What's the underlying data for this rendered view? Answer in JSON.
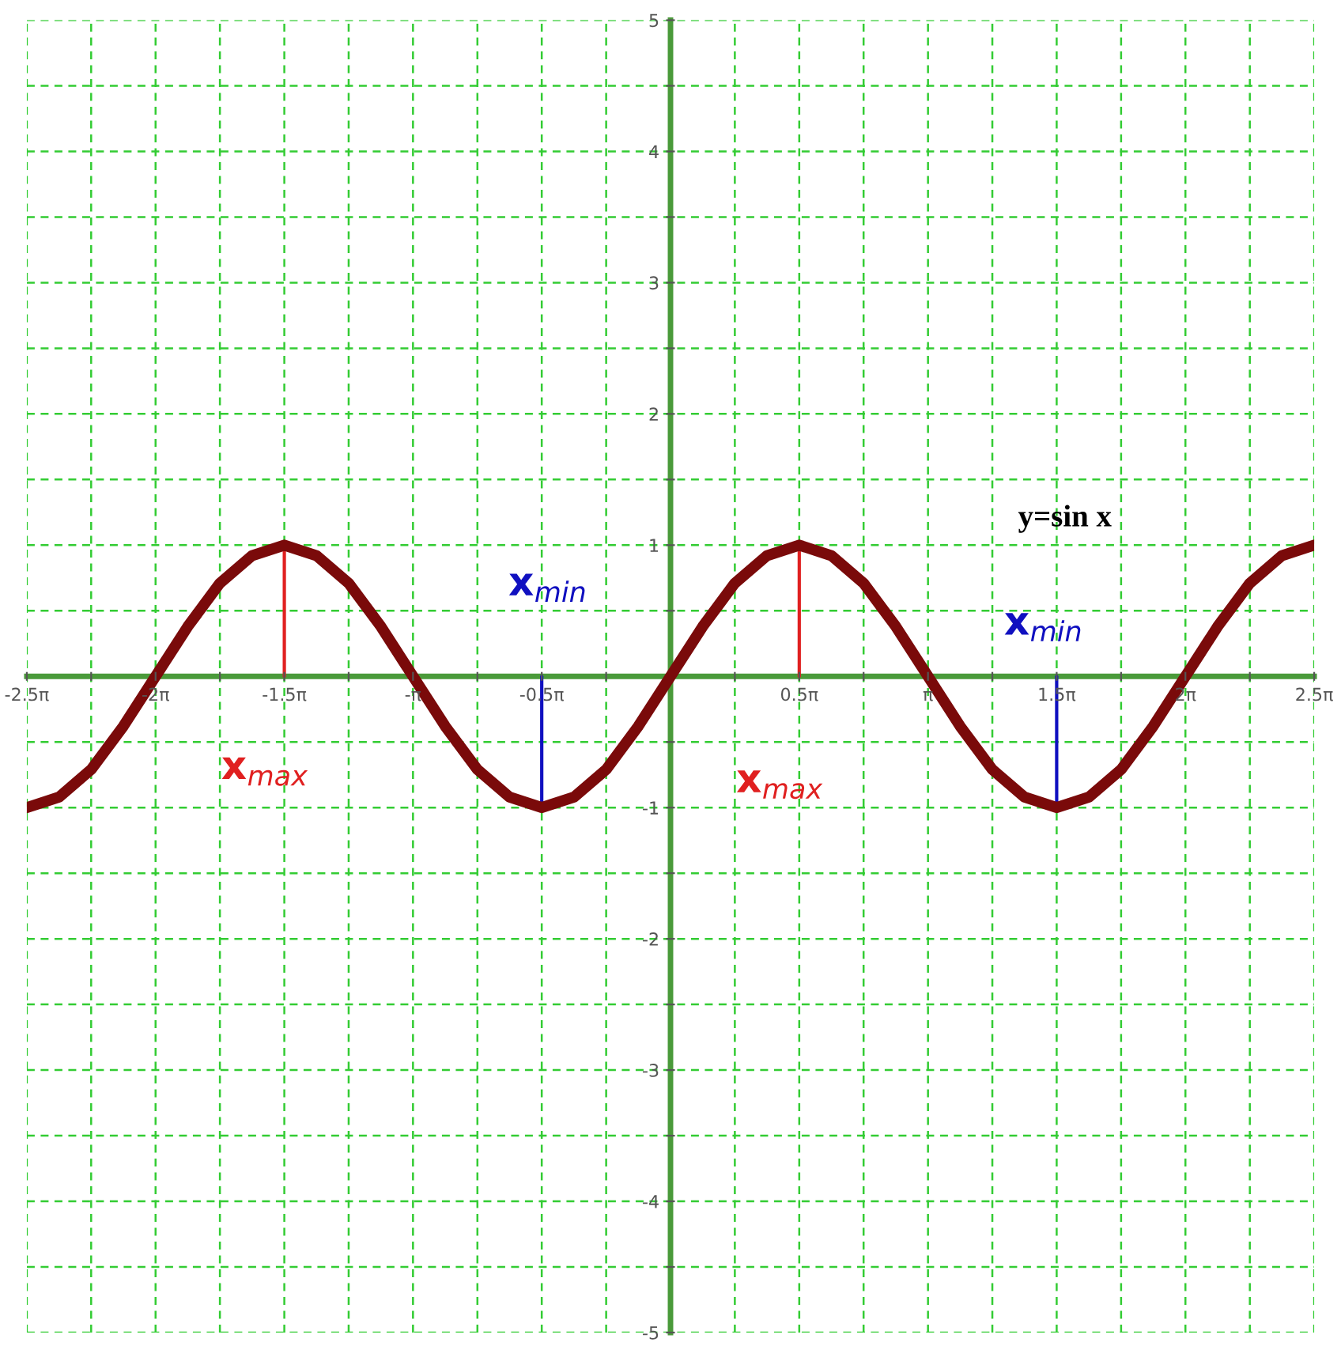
{
  "chart_data": {
    "type": "line",
    "x": [
      -7.854,
      -7.461,
      -7.069,
      -6.676,
      -6.283,
      -5.89,
      -5.498,
      -5.105,
      -4.712,
      -4.32,
      -3.927,
      -3.534,
      -3.142,
      -2.749,
      -2.356,
      -1.963,
      -1.571,
      -1.178,
      -0.785,
      -0.393,
      0.0,
      0.393,
      0.785,
      1.178,
      1.571,
      1.963,
      2.356,
      2.749,
      3.142,
      3.534,
      3.927,
      4.32,
      4.712,
      5.105,
      5.498,
      5.89,
      6.283,
      6.676,
      7.069,
      7.461,
      7.854
    ],
    "series": [
      {
        "color": "#7a0a0a",
        "values": [
          -1,
          -0.92,
          -0.71,
          -0.38,
          0,
          0.38,
          0.71,
          0.92,
          1,
          0.92,
          0.71,
          0.38,
          0,
          -0.38,
          -0.71,
          -0.92,
          -1,
          -0.92,
          -0.71,
          -0.38,
          0,
          0.38,
          0.71,
          0.92,
          1,
          0.92,
          0.71,
          0.38,
          0,
          -0.38,
          -0.71,
          -0.92,
          -1,
          -0.92,
          -0.71,
          -0.38,
          0,
          0.38,
          0.71,
          0.92,
          1
        ]
      },
      {
        "color": "#e02020",
        "x": [
          -4.712,
          -4.712
        ],
        "values": [
          0,
          1
        ]
      },
      {
        "color": "#e02020",
        "x": [
          1.571,
          1.571
        ],
        "values": [
          0,
          1
        ]
      },
      {
        "color": "#1010c0",
        "x": [
          -1.571,
          -1.571
        ],
        "values": [
          0,
          -1
        ]
      },
      {
        "color": "#1010c0",
        "x": [
          4.712,
          4.712
        ],
        "values": [
          0,
          -1
        ]
      }
    ],
    "xlim": [
      -7.854,
      7.854
    ],
    "ylim": [
      -5,
      5
    ],
    "xticks": [
      {
        "value": -7.854,
        "label": "-2.5π"
      },
      {
        "value": -7.069,
        "label": null
      },
      {
        "value": -6.283,
        "label": "-2π"
      },
      {
        "value": -5.498,
        "label": null
      },
      {
        "value": -4.712,
        "label": "-1.5π"
      },
      {
        "value": -3.927,
        "label": null
      },
      {
        "value": -3.142,
        "label": "-π"
      },
      {
        "value": -2.356,
        "label": null
      },
      {
        "value": -1.571,
        "label": "-0.5π"
      },
      {
        "value": -0.785,
        "label": null
      },
      {
        "value": 0.785,
        "label": null
      },
      {
        "value": 1.571,
        "label": "0.5π"
      },
      {
        "value": 2.356,
        "label": null
      },
      {
        "value": 3.142,
        "label": "π"
      },
      {
        "value": 3.927,
        "label": null
      },
      {
        "value": 4.712,
        "label": "1.5π"
      },
      {
        "value": 5.498,
        "label": null
      },
      {
        "value": 6.283,
        "label": "2π"
      },
      {
        "value": 7.069,
        "label": null
      },
      {
        "value": 7.854,
        "label": "2.5π"
      }
    ],
    "yticks": [
      -5,
      {
        "value": -4.5,
        "label": null
      },
      -4,
      {
        "value": -3.5,
        "label": null
      },
      -3,
      {
        "value": -2.5,
        "label": null
      },
      -2,
      {
        "value": -1.5,
        "label": null
      },
      -1,
      {
        "value": -0.5,
        "label": null
      },
      {
        "value": 0.5,
        "label": null
      },
      1,
      {
        "value": 1.5,
        "label": null
      },
      2,
      {
        "value": 2.5,
        "label": null
      },
      3,
      {
        "value": 3.5,
        "label": null
      },
      4,
      {
        "value": 4.5,
        "label": null
      },
      5
    ],
    "grid": true,
    "annotations": [
      "y=sin x",
      "x$_{max}$",
      "x$_{max}$",
      "x$_{min}$",
      "x$_{min}$"
    ]
  }
}
